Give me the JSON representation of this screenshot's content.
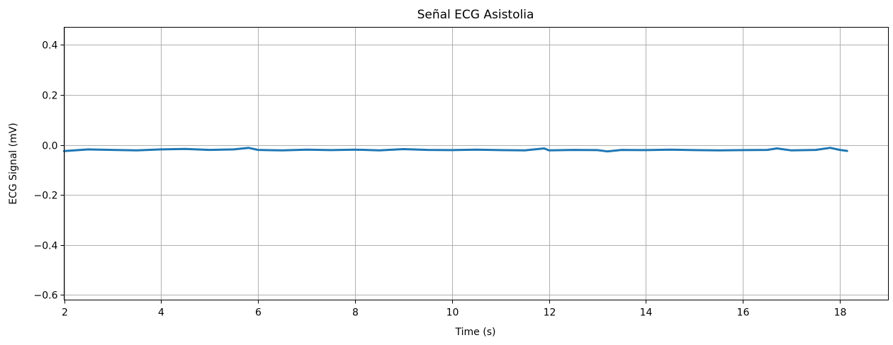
{
  "chart_data": {
    "type": "line",
    "title": "Señal ECG Asistolia",
    "xlabel": "Time (s)",
    "ylabel": "ECG Signal (mV)",
    "xlim": [
      2,
      19
    ],
    "ylim": [
      -0.62,
      0.47
    ],
    "xticks": [
      2,
      4,
      6,
      8,
      10,
      12,
      14,
      16,
      18
    ],
    "xtick_labels": [
      "2",
      "4",
      "6",
      "8",
      "10",
      "12",
      "14",
      "16",
      "18"
    ],
    "yticks": [
      -0.6,
      -0.4,
      -0.2,
      0.0,
      0.2,
      0.4
    ],
    "ytick_labels": [
      "−0.6",
      "−0.4",
      "−0.2",
      "0.0",
      "0.2",
      "0.4"
    ],
    "grid": true,
    "series": [
      {
        "color": "#1f77b4",
        "x": [
          2.0,
          2.5,
          3.0,
          3.5,
          4.0,
          4.5,
          5.0,
          5.5,
          5.8,
          6.0,
          6.5,
          7.0,
          7.5,
          8.0,
          8.5,
          9.0,
          9.5,
          10.0,
          10.5,
          11.0,
          11.5,
          11.9,
          12.0,
          12.5,
          13.0,
          13.2,
          13.5,
          14.0,
          14.5,
          15.0,
          15.5,
          16.0,
          16.5,
          16.7,
          17.0,
          17.5,
          17.8,
          18.0,
          18.15
        ],
        "y": [
          -0.025,
          -0.018,
          -0.02,
          -0.022,
          -0.018,
          -0.016,
          -0.02,
          -0.018,
          -0.012,
          -0.02,
          -0.022,
          -0.019,
          -0.021,
          -0.019,
          -0.022,
          -0.017,
          -0.02,
          -0.021,
          -0.019,
          -0.021,
          -0.022,
          -0.014,
          -0.022,
          -0.02,
          -0.021,
          -0.026,
          -0.02,
          -0.021,
          -0.019,
          -0.021,
          -0.022,
          -0.021,
          -0.02,
          -0.014,
          -0.022,
          -0.02,
          -0.012,
          -0.02,
          -0.024
        ]
      }
    ]
  }
}
